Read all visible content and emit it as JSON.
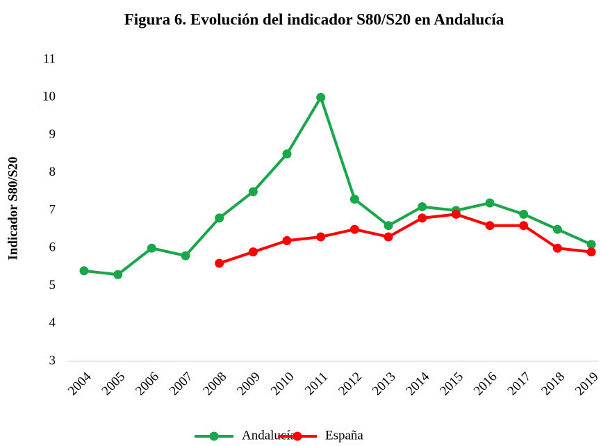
{
  "chart_data": {
    "type": "line",
    "title": "Figura 6. Evolución del indicador S80/S20 en Andalucía",
    "y_label": "Indicador S80/S20",
    "categories": [
      "2004",
      "2005",
      "2006",
      "2007",
      "2008",
      "2009",
      "2010",
      "2011",
      "2012",
      "2013",
      "2014",
      "2015",
      "2016",
      "2017",
      "2018",
      "2019"
    ],
    "series": [
      {
        "name": "Andalucía",
        "color": "#1aa64a",
        "values": [
          5.4,
          5.3,
          6.0,
          5.8,
          6.8,
          7.5,
          8.5,
          10.0,
          7.3,
          6.6,
          7.1,
          7.0,
          7.2,
          6.9,
          6.5,
          6.1
        ]
      },
      {
        "name": "España",
        "color": "#ff0000",
        "values": [
          null,
          null,
          null,
          null,
          5.6,
          5.9,
          6.2,
          6.3,
          6.5,
          6.3,
          6.8,
          6.9,
          6.6,
          6.6,
          6.0,
          5.9
        ]
      }
    ],
    "ylim": [
      3,
      11
    ],
    "yticks": [
      3,
      4,
      5,
      6,
      7,
      8,
      9,
      10,
      11
    ],
    "grid": false,
    "legend": "bottom"
  }
}
